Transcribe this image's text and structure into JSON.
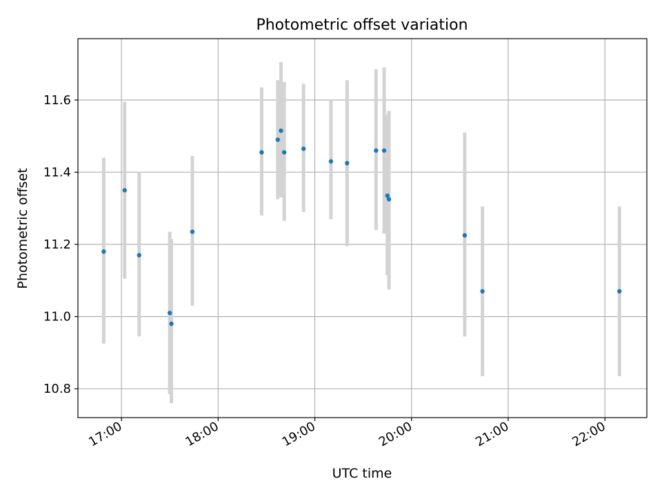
{
  "chart_data": {
    "type": "scatter",
    "title": "Photometric offset variation",
    "xlabel": "UTC time",
    "ylabel": "Photometric offset",
    "x_ticks": [
      "17:00",
      "18:00",
      "19:00",
      "20:00",
      "21:00",
      "22:00"
    ],
    "y_ticks": [
      "10.8",
      "11.0",
      "11.2",
      "11.4",
      "11.6"
    ],
    "xlim": [
      "16:33",
      "22:26"
    ],
    "ylim": [
      10.72,
      11.77
    ],
    "grid": true,
    "marker_color": "#1f77b4",
    "errorbar_color": "#d3d3d3",
    "points": [
      {
        "time": "16:49",
        "value": 11.18,
        "lower": 10.925,
        "upper": 11.44
      },
      {
        "time": "17:02",
        "value": 11.35,
        "lower": 11.105,
        "upper": 11.595
      },
      {
        "time": "17:11",
        "value": 11.17,
        "lower": 10.945,
        "upper": 11.4
      },
      {
        "time": "17:30",
        "value": 11.01,
        "lower": 10.785,
        "upper": 11.235
      },
      {
        "time": "17:31",
        "value": 10.98,
        "lower": 10.76,
        "upper": 11.215
      },
      {
        "time": "17:44",
        "value": 11.235,
        "lower": 11.03,
        "upper": 11.445
      },
      {
        "time": "18:27",
        "value": 11.455,
        "lower": 11.28,
        "upper": 11.635
      },
      {
        "time": "18:37",
        "value": 11.49,
        "lower": 11.325,
        "upper": 11.655
      },
      {
        "time": "18:39",
        "value": 11.515,
        "lower": 11.33,
        "upper": 11.705
      },
      {
        "time": "18:41",
        "value": 11.455,
        "lower": 11.265,
        "upper": 11.65
      },
      {
        "time": "18:53",
        "value": 11.465,
        "lower": 11.29,
        "upper": 11.645
      },
      {
        "time": "19:10",
        "value": 11.43,
        "lower": 11.27,
        "upper": 11.6
      },
      {
        "time": "19:20",
        "value": 11.425,
        "lower": 11.195,
        "upper": 11.655
      },
      {
        "time": "19:38",
        "value": 11.46,
        "lower": 11.24,
        "upper": 11.685
      },
      {
        "time": "19:43",
        "value": 11.46,
        "lower": 11.23,
        "upper": 11.69
      },
      {
        "time": "19:45",
        "value": 11.335,
        "lower": 11.115,
        "upper": 11.56
      },
      {
        "time": "19:46",
        "value": 11.325,
        "lower": 11.075,
        "upper": 11.57
      },
      {
        "time": "20:33",
        "value": 11.225,
        "lower": 10.945,
        "upper": 11.51
      },
      {
        "time": "20:44",
        "value": 11.07,
        "lower": 10.835,
        "upper": 11.305
      },
      {
        "time": "22:09",
        "value": 11.07,
        "lower": 10.835,
        "upper": 11.305
      }
    ]
  }
}
